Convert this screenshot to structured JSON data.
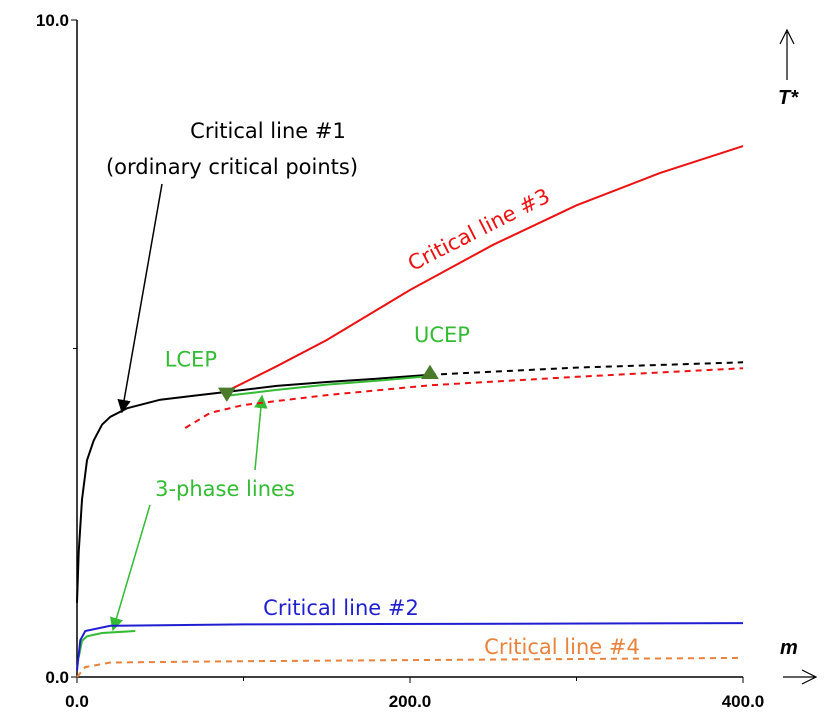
{
  "chart_data": {
    "type": "line",
    "xlabel": "m",
    "ylabel": "T*",
    "xlim": [
      0,
      400
    ],
    "ylim": [
      0,
      10
    ],
    "xticks": [
      {
        "value": 0,
        "label": "0.0"
      },
      {
        "value": 200,
        "label": "200.0"
      },
      {
        "value": 400,
        "label": "400.0"
      }
    ],
    "yticks": [
      {
        "value": 0,
        "label": "0.0"
      },
      {
        "value": 10,
        "label": "10.0"
      }
    ],
    "xticks_minor": [
      100,
      300
    ],
    "yticks_minor": [
      5
    ],
    "series": [
      {
        "color": "#000000",
        "dashed": false,
        "x": [
          0,
          1,
          3,
          6,
          10,
          15,
          20,
          30,
          50,
          70,
          90,
          120,
          150,
          180,
          212
        ],
        "y": [
          1.13,
          1.9,
          2.7,
          3.3,
          3.6,
          3.84,
          3.96,
          4.09,
          4.22,
          4.28,
          4.34,
          4.43,
          4.49,
          4.54,
          4.6
        ]
      },
      {
        "color": "#000000",
        "dashed": true,
        "x": [
          212,
          300,
          400
        ],
        "y": [
          4.6,
          4.71,
          4.79
        ]
      },
      {
        "color": "#ee1111",
        "dashed": false,
        "x": [
          90,
          120,
          150,
          200,
          250,
          300,
          350,
          400
        ],
        "y": [
          4.35,
          4.73,
          5.13,
          5.89,
          6.58,
          7.18,
          7.67,
          8.08
        ]
      },
      {
        "color": "#ee1111",
        "dashed": true,
        "x": [
          65,
          80,
          100,
          150,
          212,
          300,
          400
        ],
        "y": [
          3.79,
          4.02,
          4.14,
          4.29,
          4.44,
          4.57,
          4.7
        ]
      },
      {
        "color": "#33bb33",
        "dashed": false,
        "x": [
          90,
          120,
          150,
          180,
          212
        ],
        "y": [
          4.28,
          4.37,
          4.45,
          4.51,
          4.58
        ]
      },
      {
        "color": "#33bb33",
        "dashed": false,
        "x": [
          1,
          3,
          6,
          15,
          35
        ],
        "y": [
          0.3,
          0.55,
          0.62,
          0.67,
          0.7
        ]
      },
      {
        "color": "#1f1fd0",
        "dashed": false,
        "x": [
          0,
          2,
          5,
          20,
          100,
          400
        ],
        "y": [
          0.1,
          0.56,
          0.7,
          0.78,
          0.8,
          0.82
        ]
      },
      {
        "color": "#e8823c",
        "dashed": true,
        "x": [
          0,
          5,
          20,
          100,
          400
        ],
        "y": [
          0,
          0.15,
          0.22,
          0.24,
          0.29
        ]
      }
    ],
    "points": [
      {
        "name": "LCEP",
        "x": 90,
        "y": 4.3,
        "marker": "down",
        "color": "#4a7a2a"
      },
      {
        "name": "UCEP",
        "x": 212,
        "y": 4.64,
        "marker": "up",
        "color": "#4a7a2a"
      }
    ],
    "annotations": [
      {
        "text": "Critical line #1",
        "color": "#000000"
      },
      {
        "text": "(ordinary critical points)",
        "color": "#000000"
      },
      {
        "text": "Critical line #3",
        "color": "#ee1111"
      },
      {
        "text": "3-phase lines",
        "color": "#33bb33"
      },
      {
        "text": "Critical line #2",
        "color": "#1f1fd0"
      },
      {
        "text": "Critical line #4",
        "color": "#e8823c"
      }
    ]
  }
}
